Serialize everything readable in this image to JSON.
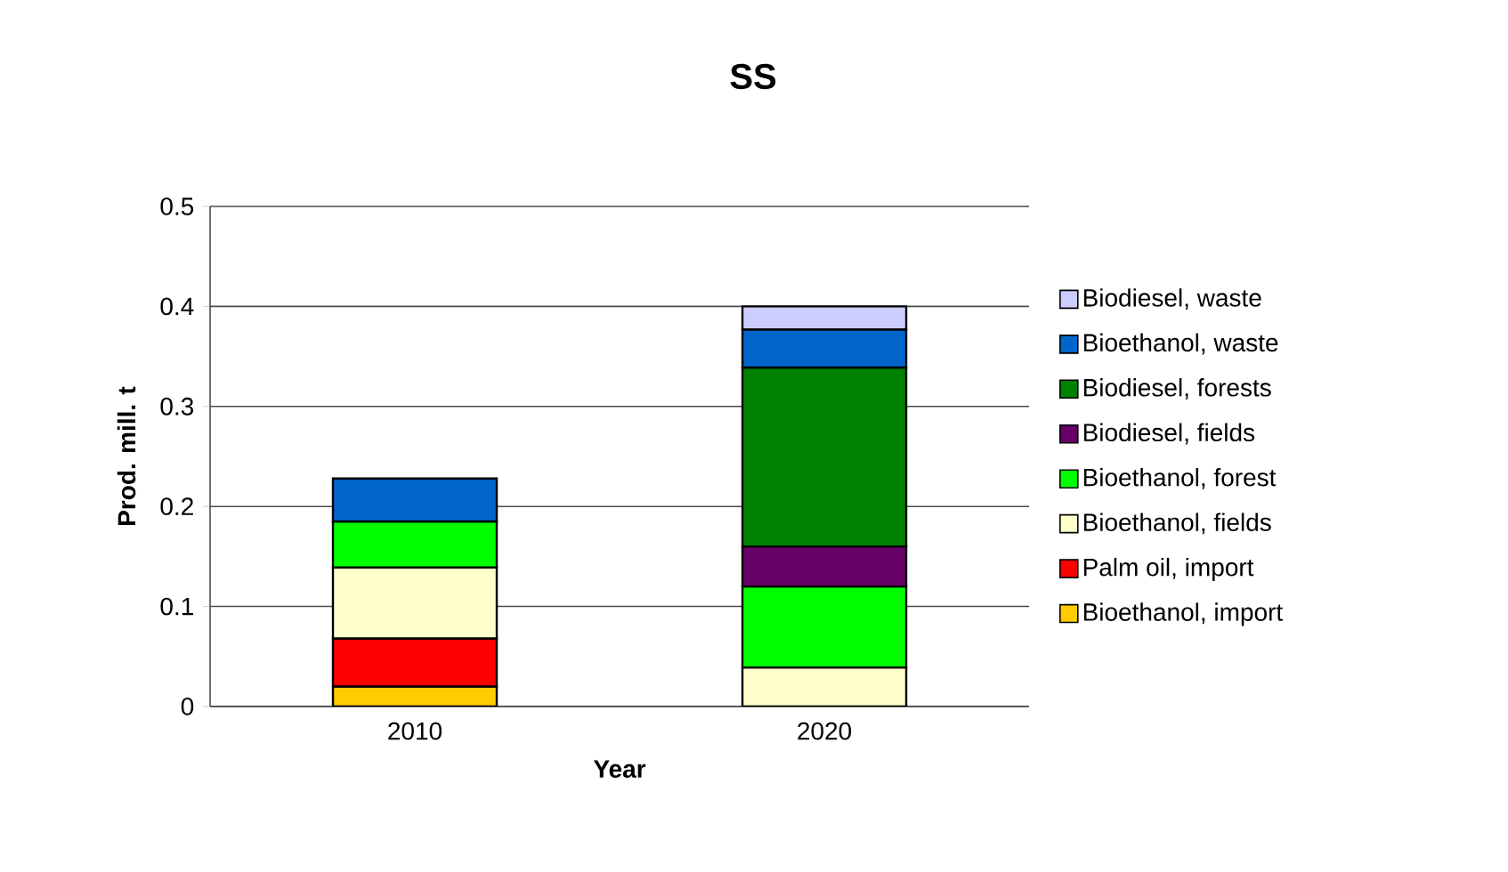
{
  "chart_data": {
    "type": "bar",
    "title": "SS",
    "xlabel": "Year",
    "ylabel": "Prod. mill. t",
    "categories": [
      "2010",
      "2020"
    ],
    "stacked": true,
    "series": [
      {
        "name": "Bioethanol, import",
        "color": "#ffcc00",
        "values": [
          0.02,
          null
        ]
      },
      {
        "name": "Palm oil, import",
        "color": "#ff0000",
        "values": [
          0.048,
          null
        ]
      },
      {
        "name": "Bioethanol, fields",
        "color": "#ffffcc",
        "values": [
          0.071,
          0.039
        ]
      },
      {
        "name": "Bioethanol, forest",
        "color": "#00ff00",
        "values": [
          0.046,
          0.081
        ]
      },
      {
        "name": "Biodiesel, fields",
        "color": "#660066",
        "values": [
          null,
          0.04
        ]
      },
      {
        "name": "Biodiesel, forests",
        "color": "#008000",
        "values": [
          null,
          0.179
        ]
      },
      {
        "name": "Bioethanol, waste",
        "color": "#0066cc",
        "values": [
          0.043,
          0.038
        ]
      },
      {
        "name": "Biodiesel, waste",
        "color": "#ccccff",
        "values": [
          null,
          0.023
        ]
      }
    ],
    "ylim": [
      0,
      0.5
    ],
    "yticks": [
      0,
      0.1,
      0.2,
      0.3,
      0.4,
      0.5
    ],
    "grid": "y",
    "legend": "right"
  }
}
